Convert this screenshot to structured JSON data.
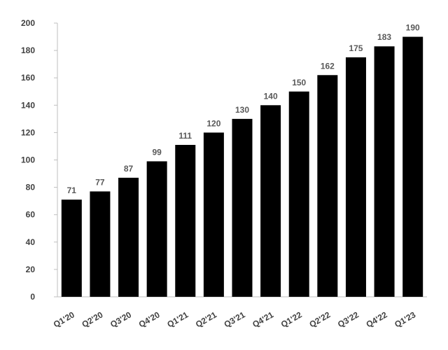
{
  "chart_data": {
    "type": "bar",
    "categories": [
      "Q1'20",
      "Q2'20",
      "Q3'20",
      "Q4'20",
      "Q1'21",
      "Q2'21",
      "Q3'21",
      "Q4'21",
      "Q1'22",
      "Q2'22",
      "Q3'22",
      "Q4'22",
      "Q1'23"
    ],
    "values": [
      71,
      77,
      87,
      99,
      111,
      120,
      130,
      140,
      150,
      162,
      175,
      183,
      190
    ],
    "data_labels": [
      "71",
      "77",
      "87",
      "99",
      "111",
      "120",
      "130",
      "140",
      "150",
      "162",
      "175",
      "183",
      "190"
    ],
    "y_ticks": [
      0,
      20,
      40,
      60,
      80,
      100,
      120,
      140,
      160,
      180,
      200
    ],
    "title": "",
    "xlabel": "",
    "ylabel": "",
    "ylim": [
      0,
      200
    ],
    "grid": false,
    "legend": "none",
    "bar_color": "#000000"
  }
}
